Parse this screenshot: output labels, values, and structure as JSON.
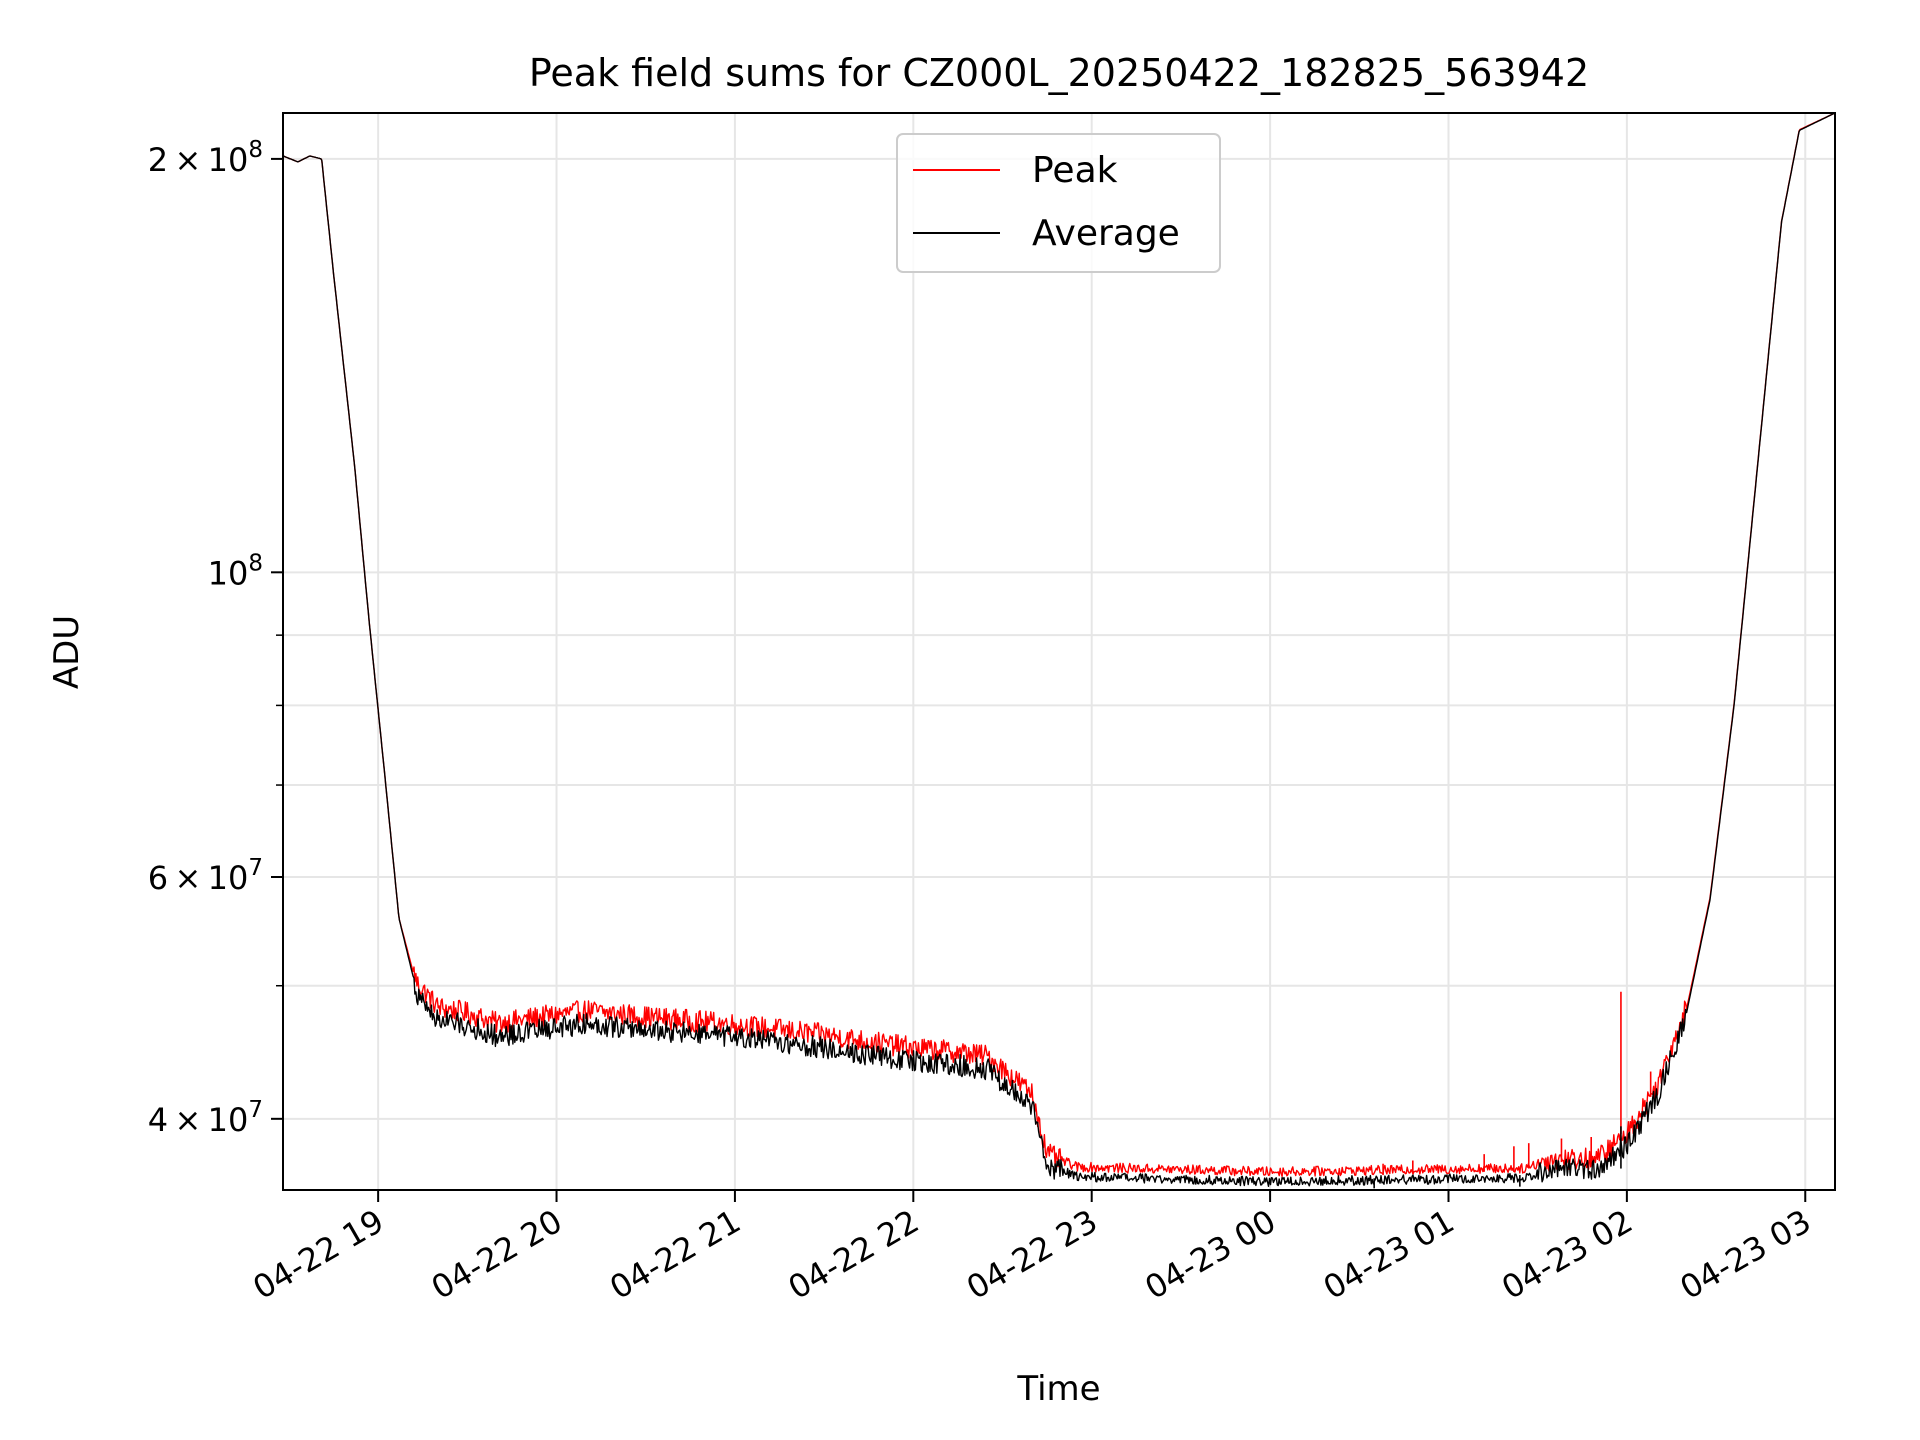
{
  "chart_data": {
    "type": "line",
    "title": "Peak field sums for CZ000L_20250422_182825_563942",
    "xlabel": "Time",
    "ylabel": "ADU",
    "yscale": "log",
    "xlim": [
      "2025-04-22 18:28",
      "2025-04-23 03:10"
    ],
    "ylim": [
      35500000,
      216000000
    ],
    "grid": true,
    "legend_position": "upper center",
    "x_ticks": [
      {
        "value": "2025-04-22 19:00",
        "label": "04-22 19"
      },
      {
        "value": "2025-04-22 20:00",
        "label": "04-22 20"
      },
      {
        "value": "2025-04-22 21:00",
        "label": "04-22 21"
      },
      {
        "value": "2025-04-22 22:00",
        "label": "04-22 22"
      },
      {
        "value": "2025-04-22 23:00",
        "label": "04-22 23"
      },
      {
        "value": "2025-04-23 00:00",
        "label": "04-23 00"
      },
      {
        "value": "2025-04-23 01:00",
        "label": "04-23 01"
      },
      {
        "value": "2025-04-23 02:00",
        "label": "04-23 02"
      },
      {
        "value": "2025-04-23 03:00",
        "label": "04-23 03"
      }
    ],
    "y_major_ticks": [
      {
        "value": 200000000,
        "mant": "2",
        "exp": "8"
      },
      {
        "value": 100000000,
        "mant": "",
        "exp": "8"
      },
      {
        "value": 60000000,
        "mant": "6",
        "exp": "7"
      },
      {
        "value": 40000000,
        "mant": "4",
        "exp": "7"
      }
    ],
    "y_minor_ticks": [
      50000000,
      70000000,
      80000000,
      90000000
    ],
    "series": [
      {
        "name": "Peak",
        "color": "#ff0000",
        "offset": 0.012,
        "points": [
          [
            "2025-04-22 18:28",
            201000000
          ],
          [
            "2025-04-22 18:33",
            199000000
          ],
          [
            "2025-04-22 18:37",
            201000000
          ],
          [
            "2025-04-22 18:41",
            200000000
          ],
          [
            "2025-04-22 18:45",
            165000000
          ],
          [
            "2025-04-22 18:52",
            120000000
          ],
          [
            "2025-04-22 18:57",
            92000000
          ],
          [
            "2025-04-22 19:02",
            72000000
          ],
          [
            "2025-04-22 19:07",
            56000000
          ],
          [
            "2025-04-22 19:13",
            50000000
          ],
          [
            "2025-04-22 19:20",
            48000000
          ],
          [
            "2025-04-22 19:30",
            47500000
          ],
          [
            "2025-04-22 19:40",
            46700000
          ],
          [
            "2025-04-22 19:55",
            47200000
          ],
          [
            "2025-04-22 20:10",
            47700000
          ],
          [
            "2025-04-22 20:30",
            47200000
          ],
          [
            "2025-04-22 21:00",
            46600000
          ],
          [
            "2025-04-22 21:30",
            45800000
          ],
          [
            "2025-04-22 22:00",
            44800000
          ],
          [
            "2025-04-22 22:15",
            44500000
          ],
          [
            "2025-04-22 22:25",
            44200000
          ],
          [
            "2025-04-22 22:40",
            41500000
          ],
          [
            "2025-04-22 22:45",
            37500000
          ],
          [
            "2025-04-22 22:55",
            36700000
          ],
          [
            "2025-04-22 23:15",
            36600000
          ],
          [
            "2025-04-22 23:40",
            36500000
          ],
          [
            "2025-04-23 00:00",
            36400000
          ],
          [
            "2025-04-23 00:40",
            36500000
          ],
          [
            "2025-04-23 01:10",
            36600000
          ],
          [
            "2025-04-23 01:25",
            36600000
          ],
          [
            "2025-04-23 01:35",
            37200000
          ],
          [
            "2025-04-23 01:50",
            37200000
          ],
          [
            "2025-04-23 02:00",
            38800000
          ],
          [
            "2025-04-23 02:10",
            42000000
          ],
          [
            "2025-04-23 02:20",
            48000000
          ],
          [
            "2025-04-23 02:28",
            58000000
          ],
          [
            "2025-04-23 02:36",
            80000000
          ],
          [
            "2025-04-23 02:44",
            120000000
          ],
          [
            "2025-04-23 02:52",
            180000000
          ],
          [
            "2025-04-23 02:58",
            210000000
          ],
          [
            "2025-04-23 03:10",
            216000000
          ]
        ]
      },
      {
        "name": "Average",
        "color": "#000000",
        "offset": -0.012,
        "points": [
          [
            "2025-04-22 18:28",
            201000000
          ],
          [
            "2025-04-22 18:33",
            199000000
          ],
          [
            "2025-04-22 18:37",
            201000000
          ],
          [
            "2025-04-22 18:41",
            200000000
          ],
          [
            "2025-04-22 18:45",
            165000000
          ],
          [
            "2025-04-22 18:52",
            120000000
          ],
          [
            "2025-04-22 18:57",
            92000000
          ],
          [
            "2025-04-22 19:02",
            72000000
          ],
          [
            "2025-04-22 19:07",
            56000000
          ],
          [
            "2025-04-22 19:13",
            49500000
          ],
          [
            "2025-04-22 19:20",
            47500000
          ],
          [
            "2025-04-22 19:30",
            47000000
          ],
          [
            "2025-04-22 19:40",
            46200000
          ],
          [
            "2025-04-22 19:55",
            46700000
          ],
          [
            "2025-04-22 20:10",
            47200000
          ],
          [
            "2025-04-22 20:30",
            46700000
          ],
          [
            "2025-04-22 21:00",
            46100000
          ],
          [
            "2025-04-22 21:30",
            45300000
          ],
          [
            "2025-04-22 22:00",
            44300000
          ],
          [
            "2025-04-22 22:15",
            44000000
          ],
          [
            "2025-04-22 22:25",
            43700000
          ],
          [
            "2025-04-22 22:40",
            41000000
          ],
          [
            "2025-04-22 22:45",
            37200000
          ],
          [
            "2025-04-22 22:55",
            36500000
          ],
          [
            "2025-04-22 23:15",
            36400000
          ],
          [
            "2025-04-22 23:40",
            36300000
          ],
          [
            "2025-04-23 00:00",
            36200000
          ],
          [
            "2025-04-23 00:40",
            36300000
          ],
          [
            "2025-04-23 01:10",
            36400000
          ],
          [
            "2025-04-23 01:25",
            36400000
          ],
          [
            "2025-04-23 01:35",
            37000000
          ],
          [
            "2025-04-23 01:50",
            37000000
          ],
          [
            "2025-04-23 02:00",
            38500000
          ],
          [
            "2025-04-23 02:10",
            41700000
          ],
          [
            "2025-04-23 02:20",
            47700000
          ],
          [
            "2025-04-23 02:28",
            57800000
          ],
          [
            "2025-04-23 02:36",
            79800000
          ],
          [
            "2025-04-23 02:44",
            119800000
          ],
          [
            "2025-04-23 02:52",
            179800000
          ],
          [
            "2025-04-23 02:58",
            209800000
          ],
          [
            "2025-04-23 03:10",
            216000000
          ]
        ]
      }
    ],
    "spikes": [
      {
        "series": "Peak",
        "t": "2025-04-23 01:58",
        "from": 39000000,
        "to": 49500000
      },
      {
        "series": "Peak",
        "t": "2025-04-23 00:38",
        "from": 36400000,
        "to": 37100000
      },
      {
        "series": "Peak",
        "t": "2025-04-23 00:48",
        "from": 36500000,
        "to": 37300000
      },
      {
        "series": "Peak",
        "t": "2025-04-23 01:12",
        "from": 36600000,
        "to": 37700000
      },
      {
        "series": "Peak",
        "t": "2025-04-23 01:22",
        "from": 36600000,
        "to": 38200000
      },
      {
        "series": "Peak",
        "t": "2025-04-23 01:27",
        "from": 36800000,
        "to": 38400000
      },
      {
        "series": "Peak",
        "t": "2025-04-23 01:38",
        "from": 37200000,
        "to": 38700000
      },
      {
        "series": "Peak",
        "t": "2025-04-23 01:48",
        "from": 37200000,
        "to": 38800000
      },
      {
        "series": "Peak",
        "t": "2025-04-23 02:08",
        "from": 41500000,
        "to": 43300000
      },
      {
        "series": "Average",
        "t": "2025-04-23 01:58",
        "from": 36800000,
        "to": 39500000
      },
      {
        "series": "Average",
        "t": "2025-04-23 00:35",
        "from": 35600000,
        "to": 36200000
      },
      {
        "series": "Average",
        "t": "2025-04-23 01:24",
        "from": 35700000,
        "to": 36400000
      }
    ]
  }
}
